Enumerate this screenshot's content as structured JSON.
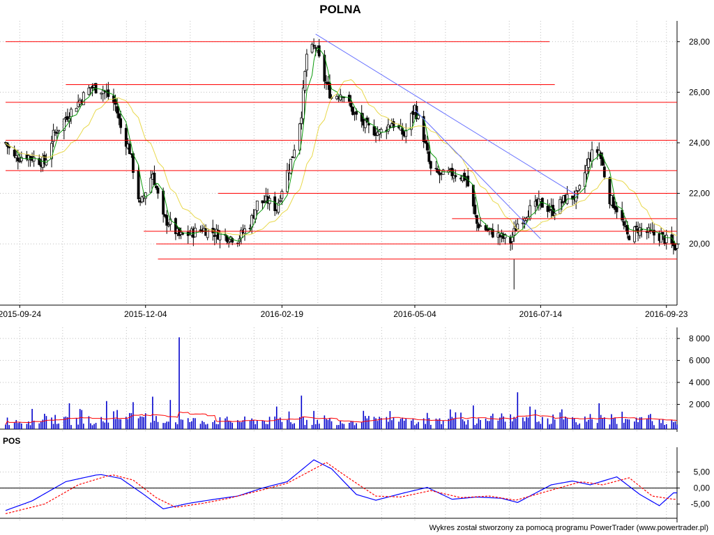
{
  "title": "POLNA",
  "footer": "Wykres został stworzony za pomocą programu PowerTrader (www.powertrader.pl)",
  "colors": {
    "support_resistance": "#ff0000",
    "trend": "#6670ff",
    "ma_short": "#0a9a0a",
    "ma_long": "#e8d84a",
    "volume": "#0000cc",
    "volume_avg": "#ff0000",
    "pos_line": "#0000ff",
    "pos_signal": "#ff0000",
    "grid": "#bdbdbd"
  },
  "chart_data": [
    {
      "type": "candlestick",
      "title": "POLNA",
      "x_range": [
        "2015-09-16",
        "2016-09-29"
      ],
      "xticks": [
        "2015-09-24",
        "2015-12-04",
        "2016-02-19",
        "2016-05-04",
        "2016-07-14",
        "2016-09-23"
      ],
      "ylim": [
        17.8,
        28.6
      ],
      "yticks": [
        "20,00",
        "22,00",
        "24,00",
        "26,00",
        "28,00"
      ],
      "ytick_values": [
        20,
        22,
        24,
        26,
        28
      ],
      "grid": true,
      "price_path": [
        [
          "2015-09-16",
          24.0
        ],
        [
          "2015-09-21",
          23.4
        ],
        [
          "2015-09-28",
          23.5
        ],
        [
          "2015-10-05",
          23.3
        ],
        [
          "2015-10-08",
          23.2
        ],
        [
          "2015-10-13",
          24.3
        ],
        [
          "2015-10-20",
          25.0
        ],
        [
          "2015-10-27",
          25.6
        ],
        [
          "2015-11-03",
          26.2
        ],
        [
          "2015-11-10",
          26.1
        ],
        [
          "2015-11-17",
          25.5
        ],
        [
          "2015-11-20",
          24.6
        ],
        [
          "2015-11-25",
          23.7
        ],
        [
          "2015-12-01",
          21.5
        ],
        [
          "2015-12-04",
          22.1
        ],
        [
          "2015-12-08",
          22.8
        ],
        [
          "2015-12-14",
          21.0
        ],
        [
          "2015-12-18",
          20.8
        ],
        [
          "2015-12-23",
          20.3
        ],
        [
          "2015-12-29",
          20.4
        ],
        [
          "2016-01-05",
          20.6
        ],
        [
          "2016-01-14",
          20.4
        ],
        [
          "2016-01-25",
          20.2
        ],
        [
          "2016-02-01",
          20.8
        ],
        [
          "2016-02-05",
          21.6
        ],
        [
          "2016-02-11",
          21.7
        ],
        [
          "2016-02-16",
          21.4
        ],
        [
          "2016-02-19",
          22.2
        ],
        [
          "2016-02-25",
          23.5
        ],
        [
          "2016-03-01",
          25.2
        ],
        [
          "2016-03-04",
          27.5
        ],
        [
          "2016-03-09",
          27.8
        ],
        [
          "2016-03-14",
          26.5
        ],
        [
          "2016-03-18",
          25.8
        ],
        [
          "2016-03-24",
          26.0
        ],
        [
          "2016-03-31",
          25.1
        ],
        [
          "2016-04-07",
          24.6
        ],
        [
          "2016-04-14",
          24.4
        ],
        [
          "2016-04-21",
          24.8
        ],
        [
          "2016-04-28",
          24.3
        ],
        [
          "2016-05-04",
          25.4
        ],
        [
          "2016-05-09",
          24.2
        ],
        [
          "2016-05-13",
          22.9
        ],
        [
          "2016-05-19",
          22.7
        ],
        [
          "2016-05-26",
          22.8
        ],
        [
          "2016-06-02",
          22.6
        ],
        [
          "2016-06-08",
          20.8
        ],
        [
          "2016-06-15",
          20.5
        ],
        [
          "2016-06-21",
          20.3
        ],
        [
          "2016-06-27",
          20.1
        ],
        [
          "2016-07-01",
          20.8
        ],
        [
          "2016-07-07",
          21.3
        ],
        [
          "2016-07-14",
          21.6
        ],
        [
          "2016-07-21",
          21.3
        ],
        [
          "2016-07-28",
          21.8
        ],
        [
          "2016-08-04",
          21.9
        ],
        [
          "2016-08-11",
          23.5
        ],
        [
          "2016-08-16",
          23.7
        ],
        [
          "2016-08-22",
          21.8
        ],
        [
          "2016-08-26",
          21.4
        ],
        [
          "2016-09-01",
          20.3
        ],
        [
          "2016-09-07",
          20.6
        ],
        [
          "2016-09-14",
          20.4
        ],
        [
          "2016-09-20",
          20.3
        ],
        [
          "2016-09-27",
          19.9
        ]
      ],
      "low_wick_spike": {
        "date": "2016-06-29",
        "low": 18.2,
        "high": 19.4
      },
      "horizontal_levels": [
        {
          "value": 28.0,
          "from": "2015-09-16",
          "to": "2016-07-19"
        },
        {
          "value": 26.3,
          "from": "2015-10-20",
          "to": "2016-07-22"
        },
        {
          "value": 25.6,
          "from": "2015-09-16",
          "to": "2016-09-29"
        },
        {
          "value": 24.1,
          "from": "2015-09-16",
          "to": "2016-09-29"
        },
        {
          "value": 22.9,
          "from": "2015-09-16",
          "to": "2016-09-29"
        },
        {
          "value": 22.0,
          "from": "2016-01-14",
          "to": "2016-09-29"
        },
        {
          "value": 21.0,
          "from": "2016-05-25",
          "to": "2016-09-29"
        },
        {
          "value": 20.5,
          "from": "2015-12-03",
          "to": "2016-09-29"
        },
        {
          "value": 20.0,
          "from": "2015-12-10",
          "to": "2016-09-29"
        },
        {
          "value": 19.4,
          "from": "2015-12-11",
          "to": "2016-09-29"
        }
      ],
      "trend_lines": [
        {
          "from": [
            "2016-03-09",
            28.3
          ],
          "to": [
            "2016-08-04",
            21.9
          ]
        },
        {
          "from": [
            "2016-05-04",
            25.3
          ],
          "to": [
            "2016-07-14",
            20.2
          ]
        }
      ]
    },
    {
      "type": "bar",
      "name": "volume",
      "ylim": [
        0,
        8500
      ],
      "yticks": [
        "2 000",
        "4 000",
        "6 000",
        "8 000"
      ],
      "ytick_values": [
        2000,
        4000,
        6000,
        8000
      ],
      "grid": true,
      "spikes": [
        [
          "2015-12-23",
          8100
        ],
        [
          "2016-07-01",
          3100
        ],
        [
          "2016-03-01",
          2800
        ],
        [
          "2015-12-08",
          2700
        ],
        [
          "2015-12-18",
          2400
        ],
        [
          "2015-11-12",
          2300
        ],
        [
          "2015-11-27",
          2200
        ],
        [
          "2015-10-22",
          2100
        ],
        [
          "2016-08-16",
          2100
        ],
        [
          "2016-06-06",
          1900
        ],
        [
          "2016-02-16",
          1800
        ],
        [
          "2016-07-08",
          1800
        ]
      ],
      "baseline_volume": 500
    },
    {
      "type": "line",
      "title": "POS",
      "ylim": [
        -9,
        11
      ],
      "yticks": [
        "5,00",
        "0,00",
        "-5,00"
      ],
      "ytick_values": [
        5,
        0,
        -5
      ],
      "grid": true,
      "series": [
        {
          "values": [
            [
              "2015-09-16",
              -7
            ],
            [
              "2015-10-01",
              -4
            ],
            [
              "2015-10-20",
              2
            ],
            [
              "2015-11-08",
              4.3
            ],
            [
              "2015-11-20",
              3
            ],
            [
              "2015-12-03",
              -2
            ],
            [
              "2015-12-14",
              -6.5
            ],
            [
              "2015-12-28",
              -4.8
            ],
            [
              "2016-01-12",
              -3.5
            ],
            [
              "2016-01-25",
              -2.5
            ],
            [
              "2016-02-08",
              0
            ],
            [
              "2016-02-22",
              2
            ],
            [
              "2016-03-08",
              8.8
            ],
            [
              "2016-03-18",
              6
            ],
            [
              "2016-04-01",
              -2
            ],
            [
              "2016-04-12",
              -3.8
            ],
            [
              "2016-04-28",
              -1.5
            ],
            [
              "2016-05-11",
              0.2
            ],
            [
              "2016-05-25",
              -3.5
            ],
            [
              "2016-06-08",
              -2.8
            ],
            [
              "2016-06-22",
              -3.2
            ],
            [
              "2016-07-01",
              -4.5
            ],
            [
              "2016-07-20",
              1
            ],
            [
              "2016-08-01",
              2.2
            ],
            [
              "2016-08-11",
              1
            ],
            [
              "2016-08-26",
              3.5
            ],
            [
              "2016-09-08",
              -2
            ],
            [
              "2016-09-19",
              -5.5
            ],
            [
              "2016-09-27",
              -1.5
            ]
          ]
        },
        {
          "values": [
            [
              "2015-09-16",
              -8
            ],
            [
              "2015-10-08",
              -5
            ],
            [
              "2015-10-27",
              1
            ],
            [
              "2015-11-15",
              4.2
            ],
            [
              "2015-11-27",
              2.5
            ],
            [
              "2015-12-10",
              -3
            ],
            [
              "2015-12-21",
              -6
            ],
            [
              "2016-01-05",
              -4.8
            ],
            [
              "2016-01-20",
              -3.2
            ],
            [
              "2016-02-05",
              -1
            ],
            [
              "2016-02-22",
              1.5
            ],
            [
              "2016-03-15",
              8
            ],
            [
              "2016-03-28",
              3
            ],
            [
              "2016-04-12",
              -2.5
            ],
            [
              "2016-04-26",
              -2.8
            ],
            [
              "2016-05-13",
              -0.8
            ],
            [
              "2016-05-30",
              -3
            ],
            [
              "2016-06-15",
              -2.5
            ],
            [
              "2016-06-30",
              -3.8
            ],
            [
              "2016-07-21",
              -0.5
            ],
            [
              "2016-08-06",
              2
            ],
            [
              "2016-08-18",
              1
            ],
            [
              "2016-09-02",
              3.2
            ],
            [
              "2016-09-15",
              -2.5
            ],
            [
              "2016-09-27",
              -3.5
            ]
          ]
        }
      ]
    }
  ]
}
